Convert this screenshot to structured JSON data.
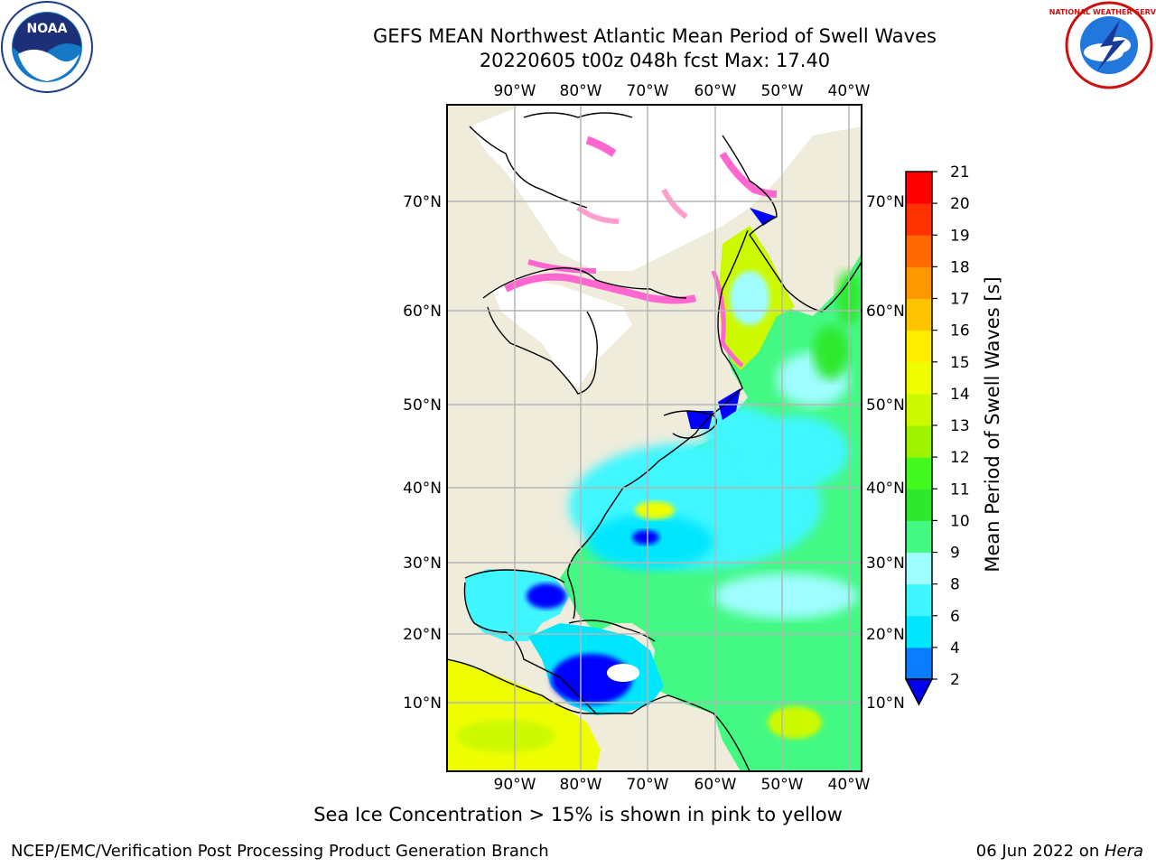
{
  "title_line1": "GEFS MEAN Northwest Atlantic Mean Period of Swell Waves",
  "title_line2": "20220605 t00z 048h fcst   Max: 17.40",
  "footnote": "Sea Ice Concentration > 15% is shown in pink to yellow",
  "credit": "NCEP/EMC/Verification Post Processing Product Generation Branch",
  "date_prefix": "06 Jun 2022 on ",
  "date_host": "Hera",
  "logos": {
    "noaa": "NOAA",
    "nws": "NATIONAL WEATHER SERVICE"
  },
  "map": {
    "lon_labels": [
      "90°W",
      "80°W",
      "70°W",
      "60°W",
      "50°W",
      "40°W"
    ],
    "lat_labels": [
      "70°N",
      "60°N",
      "50°N",
      "40°N",
      "30°N",
      "20°N",
      "10°N"
    ],
    "colorbar": {
      "label": "Mean Period of Swell Waves [s]",
      "ticks": [
        "2",
        "4",
        "6",
        "8",
        "9",
        "10",
        "11",
        "12",
        "13",
        "14",
        "15",
        "16",
        "17",
        "18",
        "19",
        "20",
        "21"
      ],
      "colors": [
        "#0000ff",
        "#0a7cff",
        "#00e6ff",
        "#3ff6ff",
        "#9ffdff",
        "#43f983",
        "#2ee82e",
        "#43f91f",
        "#9ff300",
        "#cdf900",
        "#eefe00",
        "#ffee00",
        "#ffc400",
        "#ff9800",
        "#ff6a00",
        "#ff3300",
        "#ff0000"
      ],
      "under_color": "#0000ee"
    }
  }
}
